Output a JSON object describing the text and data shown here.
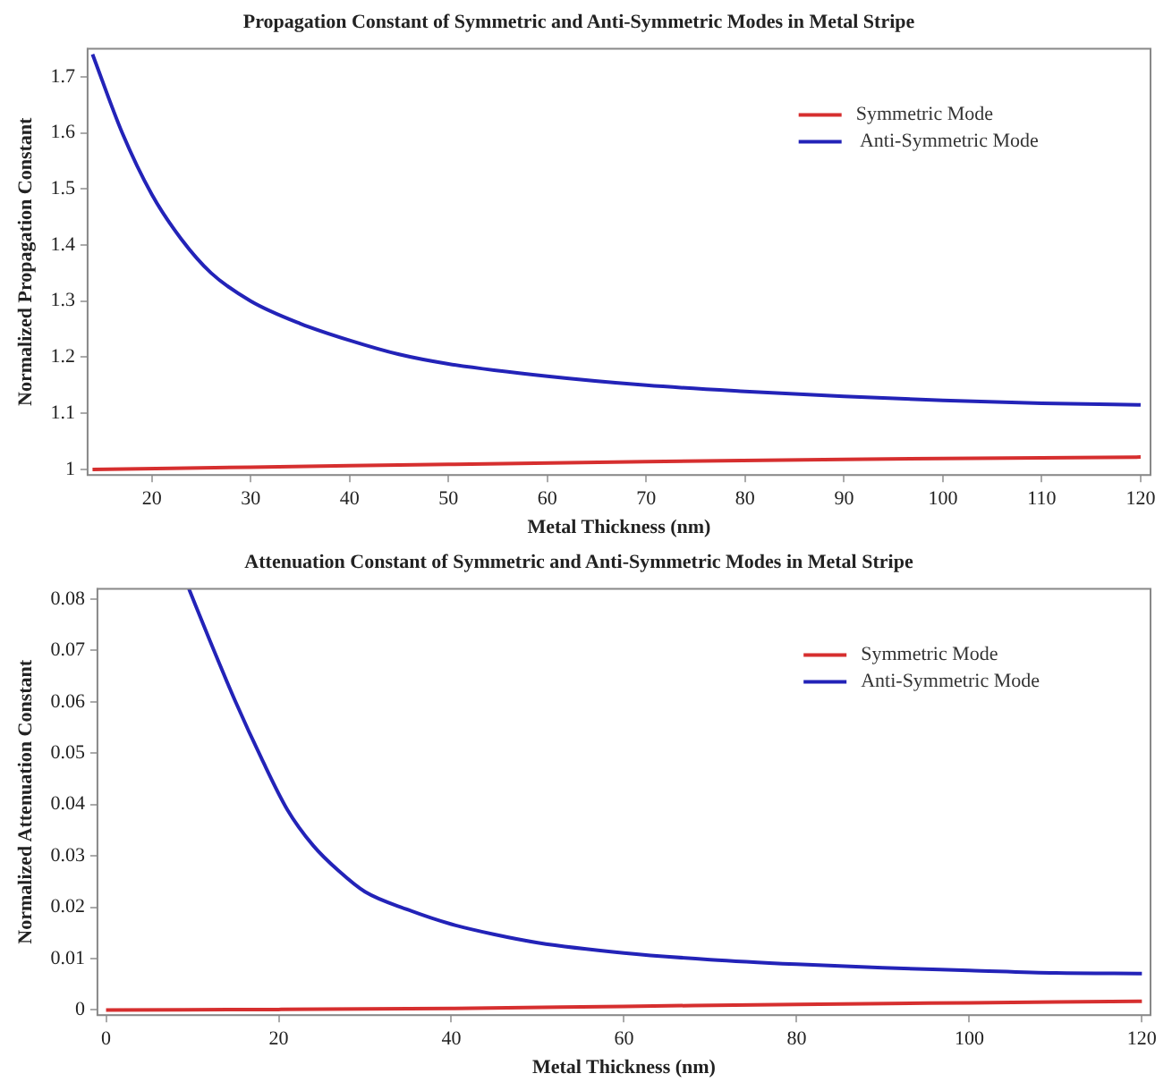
{
  "chart_data": [
    {
      "type": "line",
      "title": "Propagation Constant of Symmetric and Anti-Symmetric Modes in Metal Stripe",
      "xlabel": "Metal Thickness (nm)",
      "ylabel": "Normalized Propagation Constant",
      "xlim": [
        13.5,
        121
      ],
      "xticks": [
        20,
        30,
        40,
        50,
        60,
        70,
        80,
        90,
        100,
        110,
        120
      ],
      "ylim": [
        0.99,
        1.75
      ],
      "yticks": [
        1,
        1.1,
        1.2,
        1.3,
        1.4,
        1.5,
        1.6,
        1.7
      ],
      "grid": false,
      "legend": "top right",
      "marker": "none",
      "line_style": "solid",
      "series": [
        {
          "name": "Symmetric Mode",
          "color": "#d62f2f",
          "x": [
            14,
            30,
            50,
            70,
            90,
            120
          ],
          "values": [
            1.0,
            1.004,
            1.009,
            1.014,
            1.018,
            1.022
          ]
        },
        {
          "name": " Anti-Symmetric Mode",
          "color": "#2323b8",
          "x": [
            14,
            17,
            20,
            23,
            26,
            30,
            35,
            40,
            45,
            50,
            60,
            70,
            80,
            90,
            100,
            110,
            120
          ],
          "values": [
            1.74,
            1.6,
            1.49,
            1.41,
            1.35,
            1.3,
            1.26,
            1.23,
            1.205,
            1.188,
            1.166,
            1.15,
            1.139,
            1.13,
            1.123,
            1.118,
            1.115
          ]
        }
      ]
    },
    {
      "type": "line",
      "title": "Attenuation Constant of Symmetric and Anti-Symmetric Modes in Metal Stripe",
      "xlabel": "Metal Thickness (nm)",
      "ylabel": "Normalized Attenuation Constant",
      "xlim": [
        -1,
        121
      ],
      "xticks": [
        0,
        20,
        40,
        60,
        80,
        100,
        120
      ],
      "ylim": [
        -0.001,
        0.082
      ],
      "yticks": [
        0,
        0.01,
        0.02,
        0.03,
        0.04,
        0.05,
        0.06,
        0.07,
        0.08
      ],
      "grid": false,
      "legend": "top right",
      "marker": "none",
      "line_style": "solid",
      "series": [
        {
          "name": "Symmetric Mode",
          "color": "#d62f2f",
          "x": [
            0,
            20,
            40,
            60,
            80,
            100,
            120
          ],
          "values": [
            0,
            0.0001,
            0.0003,
            0.0007,
            0.0011,
            0.0014,
            0.0017
          ]
        },
        {
          "name": "Anti-Symmetric Mode",
          "color": "#2323b8",
          "x": [
            9.6,
            12,
            15,
            18,
            21,
            24,
            27,
            30,
            35,
            40,
            45,
            50,
            60,
            70,
            80,
            90,
            100,
            110,
            120
          ],
          "values": [
            0.082,
            0.072,
            0.06,
            0.049,
            0.039,
            0.032,
            0.027,
            0.023,
            0.0195,
            0.0167,
            0.0147,
            0.0131,
            0.0111,
            0.0098,
            0.0089,
            0.0082,
            0.0077,
            0.0072,
            0.0071
          ]
        }
      ]
    }
  ]
}
